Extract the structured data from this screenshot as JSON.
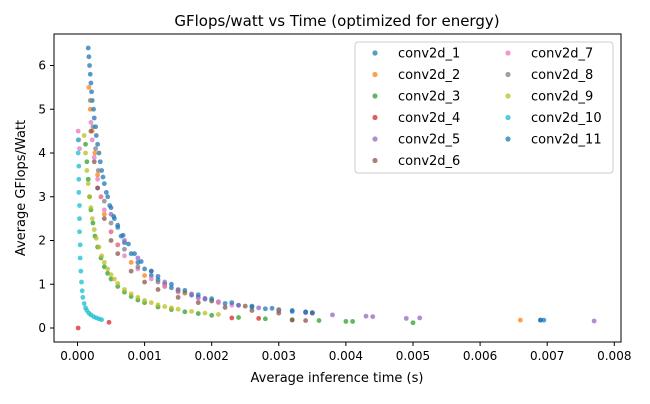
{
  "chart_data": {
    "type": "scatter",
    "title": "GFlops/watt vs Time (optimized for energy)",
    "xlabel": "Average inference time (s)",
    "ylabel": "Average GFlops/Watt",
    "xlim": [
      -0.00035,
      0.0081
    ],
    "ylim": [
      -0.32,
      6.72
    ],
    "xticks": [
      0.0,
      0.001,
      0.002,
      0.003,
      0.004,
      0.005,
      0.006,
      0.007,
      0.008
    ],
    "xtick_labels": [
      "0.000",
      "0.001",
      "0.002",
      "0.003",
      "0.004",
      "0.005",
      "0.006",
      "0.007",
      "0.008"
    ],
    "yticks": [
      0,
      1,
      2,
      3,
      4,
      5,
      6
    ],
    "ytick_labels": [
      "0",
      "1",
      "2",
      "3",
      "4",
      "5",
      "6"
    ],
    "grid": false,
    "legend": {
      "placement": "top-right",
      "columns": 2
    },
    "series": [
      {
        "name": "conv2d_1",
        "color": "#1f77b4",
        "points": [
          [
            0.00016,
            6.4
          ],
          [
            0.00018,
            6.0
          ],
          [
            0.0002,
            5.6
          ],
          [
            0.00022,
            5.2
          ],
          [
            0.00025,
            4.8
          ],
          [
            0.00028,
            4.4
          ],
          [
            0.00032,
            4.0
          ],
          [
            0.00036,
            3.6
          ],
          [
            0.0004,
            3.3
          ],
          [
            0.00045,
            3.0
          ],
          [
            0.0005,
            2.75
          ],
          [
            0.00055,
            2.5
          ],
          [
            0.0006,
            2.3
          ],
          [
            0.00065,
            2.1
          ],
          [
            0.0007,
            1.95
          ],
          [
            0.0008,
            1.7
          ],
          [
            0.0009,
            1.5
          ],
          [
            0.001,
            1.35
          ],
          [
            0.0011,
            1.2
          ],
          [
            0.0012,
            1.1
          ],
          [
            0.0013,
            1.0
          ],
          [
            0.0014,
            0.92
          ],
          [
            0.0015,
            0.86
          ],
          [
            0.0016,
            0.8
          ],
          [
            0.0017,
            0.75
          ],
          [
            0.0018,
            0.7
          ],
          [
            0.0019,
            0.66
          ],
          [
            0.002,
            0.62
          ],
          [
            0.0022,
            0.56
          ],
          [
            0.0024,
            0.52
          ],
          [
            0.0026,
            0.48
          ],
          [
            0.0028,
            0.44
          ],
          [
            0.003,
            0.41
          ],
          [
            0.0032,
            0.38
          ],
          [
            0.0034,
            0.36
          ],
          [
            0.0035,
            0.34
          ],
          [
            0.0069,
            0.18
          ],
          [
            0.00695,
            0.18
          ]
        ]
      },
      {
        "name": "conv2d_2",
        "color": "#ff7f0e",
        "points": [
          [
            0.00017,
            5.5
          ],
          [
            0.00019,
            5.0
          ],
          [
            0.00022,
            4.5
          ],
          [
            0.00026,
            4.0
          ],
          [
            0.0003,
            3.5
          ],
          [
            0.00035,
            3.0
          ],
          [
            0.0004,
            2.6
          ],
          [
            0.0005,
            2.2
          ],
          [
            0.0006,
            1.9
          ],
          [
            0.0008,
            1.5
          ],
          [
            0.001,
            1.2
          ],
          [
            0.0013,
            0.95
          ],
          [
            0.0016,
            0.8
          ],
          [
            0.002,
            0.62
          ],
          [
            0.0025,
            0.5
          ],
          [
            0.003,
            0.41
          ],
          [
            0.0035,
            0.35
          ],
          [
            0.0066,
            0.18
          ]
        ]
      },
      {
        "name": "conv2d_3",
        "color": "#2ca02c",
        "points": [
          [
            0.00012,
            4.2
          ],
          [
            0.00014,
            3.8
          ],
          [
            0.00016,
            3.4
          ],
          [
            0.00018,
            3.0
          ],
          [
            0.0002,
            2.7
          ],
          [
            0.00023,
            2.4
          ],
          [
            0.00026,
            2.1
          ],
          [
            0.0003,
            1.85
          ],
          [
            0.00035,
            1.6
          ],
          [
            0.0004,
            1.4
          ],
          [
            0.00045,
            1.25
          ],
          [
            0.0005,
            1.12
          ],
          [
            0.0006,
            0.95
          ],
          [
            0.0007,
            0.82
          ],
          [
            0.0008,
            0.72
          ],
          [
            0.0009,
            0.64
          ],
          [
            0.001,
            0.58
          ],
          [
            0.0012,
            0.48
          ],
          [
            0.0014,
            0.42
          ],
          [
            0.0016,
            0.37
          ],
          [
            0.0018,
            0.33
          ],
          [
            0.002,
            0.29
          ],
          [
            0.0024,
            0.24
          ],
          [
            0.0028,
            0.21
          ],
          [
            0.0032,
            0.19
          ],
          [
            0.0036,
            0.17
          ],
          [
            0.004,
            0.15
          ],
          [
            0.0041,
            0.15
          ],
          [
            0.005,
            0.12
          ]
        ]
      },
      {
        "name": "conv2d_4",
        "color": "#d62728",
        "points": [
          [
            1e-05,
            0.0
          ],
          [
            0.00047,
            0.13
          ],
          [
            0.0023,
            0.23
          ],
          [
            0.0027,
            0.22
          ]
        ]
      },
      {
        "name": "conv2d_5",
        "color": "#9467bd",
        "points": [
          [
            0.0003,
            3.2
          ],
          [
            0.0005,
            2.6
          ],
          [
            0.0007,
            2.0
          ],
          [
            0.0009,
            1.6
          ],
          [
            0.0011,
            1.3
          ],
          [
            0.0013,
            1.05
          ],
          [
            0.0015,
            0.88
          ],
          [
            0.0017,
            0.78
          ],
          [
            0.0019,
            0.68
          ],
          [
            0.0021,
            0.6
          ],
          [
            0.0024,
            0.52
          ],
          [
            0.0027,
            0.46
          ],
          [
            0.003,
            0.4
          ],
          [
            0.0034,
            0.35
          ],
          [
            0.0038,
            0.3
          ],
          [
            0.0043,
            0.27
          ],
          [
            0.0044,
            0.26
          ],
          [
            0.0049,
            0.22
          ],
          [
            0.0051,
            0.23
          ],
          [
            0.0077,
            0.16
          ]
        ]
      },
      {
        "name": "conv2d_6",
        "color": "#8c564b",
        "points": [
          [
            0.0002,
            4.5
          ],
          [
            0.00025,
            3.8
          ],
          [
            0.0003,
            3.2
          ],
          [
            0.0004,
            2.5
          ],
          [
            0.0005,
            2.0
          ],
          [
            0.0006,
            1.7
          ],
          [
            0.0008,
            1.3
          ],
          [
            0.001,
            1.05
          ],
          [
            0.0012,
            0.88
          ],
          [
            0.0015,
            0.7
          ],
          [
            0.0018,
            0.58
          ],
          [
            0.0022,
            0.47
          ],
          [
            0.0026,
            0.4
          ],
          [
            0.003,
            0.34
          ],
          [
            0.0032,
            0.18
          ],
          [
            0.0034,
            0.17
          ]
        ]
      },
      {
        "name": "conv2d_7",
        "color": "#e377c2",
        "points": [
          [
            1e-05,
            4.5
          ],
          [
            2e-05,
            4.3
          ],
          [
            3e-05,
            4.1
          ],
          [
            0.0002,
            4.7
          ],
          [
            0.00022,
            4.3
          ],
          [
            0.00025,
            3.9
          ],
          [
            0.0003,
            3.4
          ],
          [
            0.00035,
            3.0
          ],
          [
            0.0004,
            2.7
          ],
          [
            0.0005,
            2.2
          ],
          [
            0.0006,
            1.9
          ],
          [
            0.0007,
            1.65
          ],
          [
            0.0009,
            1.35
          ],
          [
            0.0011,
            1.12
          ],
          [
            0.0013,
            0.95
          ],
          [
            0.0015,
            0.82
          ],
          [
            0.0018,
            0.68
          ],
          [
            0.0021,
            0.58
          ],
          [
            0.0023,
            0.52
          ]
        ]
      },
      {
        "name": "conv2d_8",
        "color": "#7f7f7f",
        "points": [
          [
            0.00019,
            5.2
          ],
          [
            0.00023,
            4.6
          ],
          [
            0.00027,
            4.1
          ],
          [
            0.00031,
            3.6
          ],
          [
            0.0004,
            2.9
          ],
          [
            0.0005,
            2.4
          ],
          [
            0.0007,
            1.8
          ],
          [
            0.0009,
            1.4
          ],
          [
            0.0012,
            1.05
          ],
          [
            0.0015,
            0.85
          ],
          [
            0.002,
            0.62
          ],
          [
            0.0025,
            0.5
          ],
          [
            0.003,
            0.42
          ],
          [
            0.0035,
            0.34
          ]
        ]
      },
      {
        "name": "conv2d_9",
        "color": "#bcbd22",
        "points": [
          [
            0.0001,
            4.4
          ],
          [
            0.00012,
            4.0
          ],
          [
            0.00014,
            3.6
          ],
          [
            0.00016,
            3.3
          ],
          [
            0.00018,
            3.0
          ],
          [
            0.0002,
            2.75
          ],
          [
            0.00022,
            2.5
          ],
          [
            0.00025,
            2.25
          ],
          [
            0.00028,
            2.05
          ],
          [
            0.00032,
            1.85
          ],
          [
            0.00036,
            1.65
          ],
          [
            0.0004,
            1.5
          ],
          [
            0.00045,
            1.35
          ],
          [
            0.0005,
            1.22
          ],
          [
            0.00055,
            1.12
          ],
          [
            0.0006,
            1.02
          ],
          [
            0.0007,
            0.88
          ],
          [
            0.0008,
            0.78
          ],
          [
            0.0009,
            0.7
          ],
          [
            0.001,
            0.63
          ],
          [
            0.0011,
            0.58
          ],
          [
            0.0012,
            0.53
          ],
          [
            0.0013,
            0.49
          ],
          [
            0.0014,
            0.46
          ],
          [
            0.0015,
            0.43
          ],
          [
            0.0017,
            0.38
          ],
          [
            0.0019,
            0.34
          ],
          [
            0.0021,
            0.31
          ]
        ]
      },
      {
        "name": "conv2d_10",
        "color": "#17becf",
        "points": [
          [
            1e-05,
            4.3
          ],
          [
            1e-05,
            4.0
          ],
          [
            2e-05,
            3.7
          ],
          [
            2e-05,
            3.4
          ],
          [
            2e-05,
            3.1
          ],
          [
            3e-05,
            2.8
          ],
          [
            3e-05,
            2.5
          ],
          [
            3e-05,
            2.2
          ],
          [
            4e-05,
            1.9
          ],
          [
            4e-05,
            1.6
          ],
          [
            5e-05,
            1.3
          ],
          [
            6e-05,
            1.05
          ],
          [
            7e-05,
            0.85
          ],
          [
            8e-05,
            0.7
          ],
          [
            0.0001,
            0.56
          ],
          [
            0.00012,
            0.46
          ],
          [
            0.00014,
            0.4
          ],
          [
            0.00017,
            0.34
          ],
          [
            0.0002,
            0.3
          ],
          [
            0.00024,
            0.26
          ],
          [
            0.00028,
            0.23
          ],
          [
            0.00032,
            0.21
          ],
          [
            0.00036,
            0.19
          ]
        ]
      },
      {
        "name": "conv2d_11",
        "color": "#1f77b4",
        "points": [
          [
            0.00017,
            6.2
          ],
          [
            0.00019,
            5.8
          ],
          [
            0.00021,
            5.4
          ],
          [
            0.00024,
            5.0
          ],
          [
            0.00027,
            4.6
          ],
          [
            0.0003,
            4.2
          ],
          [
            0.00034,
            3.8
          ],
          [
            0.00038,
            3.45
          ],
          [
            0.00043,
            3.1
          ],
          [
            0.00048,
            2.8
          ],
          [
            0.00054,
            2.55
          ],
          [
            0.0006,
            2.35
          ],
          [
            0.00068,
            2.12
          ],
          [
            0.00076,
            1.92
          ],
          [
            0.00085,
            1.7
          ],
          [
            0.00095,
            1.52
          ],
          [
            0.0011,
            1.3
          ],
          [
            0.0012,
            1.18
          ],
          [
            0.0014,
            1.0
          ],
          [
            0.0016,
            0.86
          ],
          [
            0.0018,
            0.76
          ],
          [
            0.002,
            0.67
          ],
          [
            0.0023,
            0.58
          ],
          [
            0.0026,
            0.5
          ],
          [
            0.0029,
            0.45
          ],
          [
            0.0032,
            0.4
          ],
          [
            0.0034,
            0.37
          ],
          [
            0.0035,
            0.35
          ],
          [
            0.0069,
            0.18
          ]
        ]
      }
    ]
  }
}
